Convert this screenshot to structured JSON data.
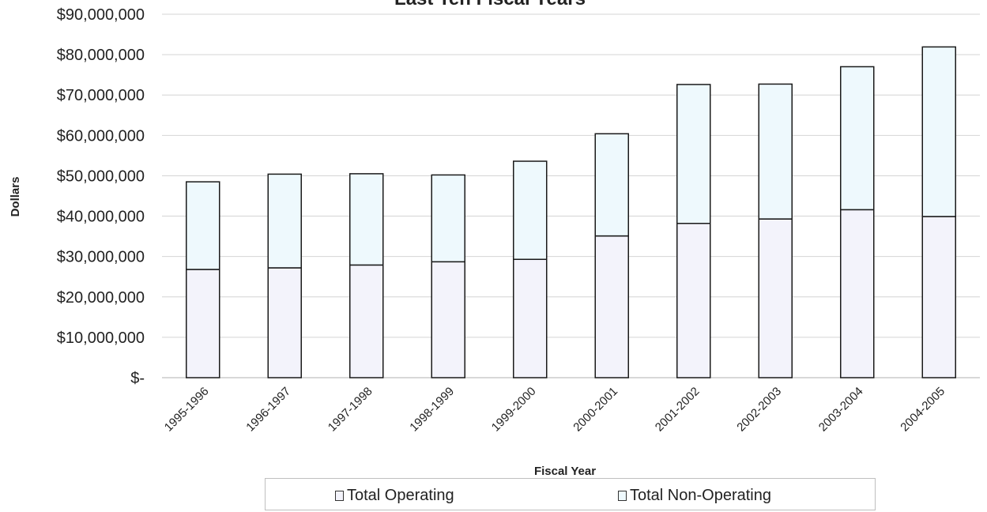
{
  "chart_data": {
    "type": "bar",
    "stacked": true,
    "title": "Last Ten Fiscal Years",
    "xlabel": "Fiscal Year",
    "ylabel": "Dollars",
    "ylim": [
      0,
      90000000
    ],
    "ytick_labels": [
      "$-",
      "$10,000,000",
      "$20,000,000",
      "$30,000,000",
      "$40,000,000",
      "$50,000,000",
      "$60,000,000",
      "$70,000,000",
      "$80,000,000",
      "$90,000,000"
    ],
    "categories": [
      "1995-1996",
      "1996-1997",
      "1997-1998",
      "1998-1999",
      "1999-2000",
      "2000-2001",
      "2001-2002",
      "2002-2003",
      "2003-2004",
      "2004-2005"
    ],
    "series": [
      {
        "name": "Total Operating",
        "color": "#f3f3fb",
        "values": [
          26800000,
          27200000,
          27900000,
          28700000,
          29300000,
          35100000,
          38200000,
          39300000,
          41600000,
          39900000
        ]
      },
      {
        "name": "Total Non-Operating",
        "color": "#eef9fd",
        "values": [
          21700000,
          23200000,
          22600000,
          21500000,
          24300000,
          25300000,
          34400000,
          33400000,
          35400000,
          42000000
        ]
      }
    ],
    "grid": true,
    "legend_position": "bottom"
  }
}
